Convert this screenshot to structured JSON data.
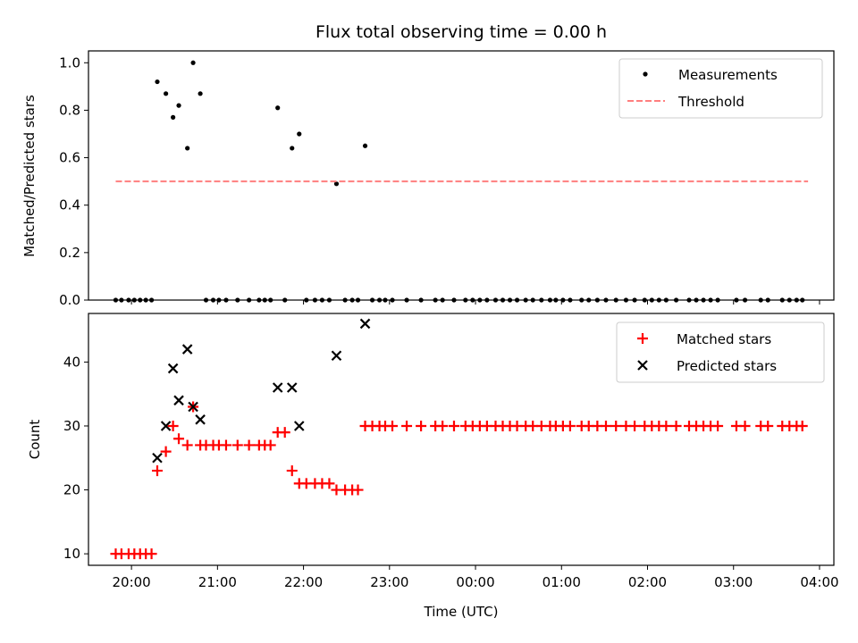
{
  "chart_data": [
    {
      "type": "scatter",
      "title": "Flux total observing time = 0.00 h",
      "ylabel": "Matched/Predicted stars",
      "xlim": [
        "19:30",
        "04:10"
      ],
      "ylim": [
        0,
        1.05
      ],
      "yticks": [
        0.0,
        0.2,
        0.4,
        0.6,
        0.8,
        1.0
      ],
      "ytick_labels": [
        "0.0",
        "0.2",
        "0.4",
        "0.6",
        "0.8",
        "1.0"
      ],
      "legend_position": "upper right",
      "series": [
        {
          "name": "Measurements",
          "kind": "scatter",
          "marker": "dot",
          "color": "#000000",
          "points": [
            [
              "19:49",
              0
            ],
            [
              "19:53",
              0
            ],
            [
              "19:58",
              0
            ],
            [
              "20:02",
              0
            ],
            [
              "20:06",
              0
            ],
            [
              "20:10",
              0
            ],
            [
              "20:14",
              0
            ],
            [
              "20:18",
              0.92
            ],
            [
              "20:24",
              0.87
            ],
            [
              "20:29",
              0.77
            ],
            [
              "20:33",
              0.82
            ],
            [
              "20:39",
              0.64
            ],
            [
              "20:43",
              1.0
            ],
            [
              "20:48",
              0.87
            ],
            [
              "20:52",
              0
            ],
            [
              "20:57",
              0
            ],
            [
              "21:01",
              0
            ],
            [
              "21:06",
              0
            ],
            [
              "21:14",
              0
            ],
            [
              "21:22",
              0
            ],
            [
              "21:29",
              0
            ],
            [
              "21:33",
              0
            ],
            [
              "21:37",
              0
            ],
            [
              "21:42",
              0.81
            ],
            [
              "21:47",
              0
            ],
            [
              "21:52",
              0.64
            ],
            [
              "21:57",
              0.7
            ],
            [
              "22:02",
              0
            ],
            [
              "22:08",
              0
            ],
            [
              "22:13",
              0
            ],
            [
              "22:18",
              0
            ],
            [
              "22:23",
              0.49
            ],
            [
              "22:29",
              0
            ],
            [
              "22:34",
              0
            ],
            [
              "22:38",
              0
            ],
            [
              "22:43",
              0.65
            ],
            [
              "22:48",
              0
            ],
            [
              "22:53",
              0
            ],
            [
              "22:57",
              0
            ],
            [
              "23:02",
              0
            ],
            [
              "23:12",
              0
            ],
            [
              "23:22",
              0
            ],
            [
              "23:32",
              0
            ],
            [
              "23:37",
              0
            ],
            [
              "23:45",
              0
            ],
            [
              "23:53",
              0
            ],
            [
              "23:58",
              0
            ],
            [
              "00:03",
              0
            ],
            [
              "00:08",
              0
            ],
            [
              "00:14",
              0
            ],
            [
              "00:19",
              0
            ],
            [
              "00:24",
              0
            ],
            [
              "00:29",
              0
            ],
            [
              "00:35",
              0
            ],
            [
              "00:40",
              0
            ],
            [
              "00:46",
              0
            ],
            [
              "00:52",
              0
            ],
            [
              "00:56",
              0
            ],
            [
              "01:01",
              0
            ],
            [
              "01:06",
              0
            ],
            [
              "01:14",
              0
            ],
            [
              "01:19",
              0
            ],
            [
              "01:25",
              0
            ],
            [
              "01:31",
              0
            ],
            [
              "01:38",
              0
            ],
            [
              "01:45",
              0
            ],
            [
              "01:51",
              0
            ],
            [
              "01:58",
              0
            ],
            [
              "02:03",
              0
            ],
            [
              "02:08",
              0
            ],
            [
              "02:13",
              0
            ],
            [
              "02:20",
              0
            ],
            [
              "02:29",
              0
            ],
            [
              "02:34",
              0
            ],
            [
              "02:39",
              0
            ],
            [
              "02:44",
              0
            ],
            [
              "02:49",
              0
            ],
            [
              "03:02",
              0
            ],
            [
              "03:08",
              0
            ],
            [
              "03:19",
              0
            ],
            [
              "03:24",
              0
            ],
            [
              "03:34",
              0
            ],
            [
              "03:39",
              0
            ],
            [
              "03:44",
              0
            ],
            [
              "03:48",
              0
            ]
          ]
        },
        {
          "name": "Threshold",
          "kind": "line",
          "style": "dashed",
          "color": "#ff7f7f",
          "points": [
            [
              "19:49",
              0.5
            ],
            [
              "03:52",
              0.5
            ]
          ]
        }
      ]
    },
    {
      "type": "scatter",
      "xlabel": "Time (UTC)",
      "ylabel": "Count",
      "xlim": [
        "19:30",
        "04:10"
      ],
      "ylim": [
        8.2,
        47.6
      ],
      "xticks": [
        "20:00",
        "21:00",
        "22:00",
        "23:00",
        "00:00",
        "01:00",
        "02:00",
        "03:00",
        "04:00"
      ],
      "yticks": [
        10,
        20,
        30,
        40
      ],
      "ytick_labels": [
        "10",
        "20",
        "30",
        "40"
      ],
      "legend_position": "upper right",
      "series": [
        {
          "name": "Matched stars",
          "kind": "scatter",
          "marker": "plus",
          "color": "#ff0000",
          "points": [
            [
              "19:49",
              10
            ],
            [
              "19:53",
              10
            ],
            [
              "19:58",
              10
            ],
            [
              "20:02",
              10
            ],
            [
              "20:06",
              10
            ],
            [
              "20:10",
              10
            ],
            [
              "20:14",
              10
            ],
            [
              "20:18",
              23
            ],
            [
              "20:24",
              26
            ],
            [
              "20:29",
              30
            ],
            [
              "20:33",
              28
            ],
            [
              "20:39",
              27
            ],
            [
              "20:43",
              33
            ],
            [
              "20:48",
              27
            ],
            [
              "20:52",
              27
            ],
            [
              "20:57",
              27
            ],
            [
              "21:01",
              27
            ],
            [
              "21:06",
              27
            ],
            [
              "21:14",
              27
            ],
            [
              "21:22",
              27
            ],
            [
              "21:29",
              27
            ],
            [
              "21:33",
              27
            ],
            [
              "21:37",
              27
            ],
            [
              "21:42",
              29
            ],
            [
              "21:47",
              29
            ],
            [
              "21:52",
              23
            ],
            [
              "21:57",
              21
            ],
            [
              "22:02",
              21
            ],
            [
              "22:08",
              21
            ],
            [
              "22:13",
              21
            ],
            [
              "22:18",
              21
            ],
            [
              "22:23",
              20
            ],
            [
              "22:29",
              20
            ],
            [
              "22:34",
              20
            ],
            [
              "22:38",
              20
            ],
            [
              "22:43",
              30
            ],
            [
              "22:48",
              30
            ],
            [
              "22:53",
              30
            ],
            [
              "22:57",
              30
            ],
            [
              "23:02",
              30
            ],
            [
              "23:12",
              30
            ],
            [
              "23:22",
              30
            ],
            [
              "23:32",
              30
            ],
            [
              "23:37",
              30
            ],
            [
              "23:45",
              30
            ],
            [
              "23:53",
              30
            ],
            [
              "23:58",
              30
            ],
            [
              "00:03",
              30
            ],
            [
              "00:08",
              30
            ],
            [
              "00:14",
              30
            ],
            [
              "00:19",
              30
            ],
            [
              "00:24",
              30
            ],
            [
              "00:29",
              30
            ],
            [
              "00:35",
              30
            ],
            [
              "00:40",
              30
            ],
            [
              "00:46",
              30
            ],
            [
              "00:52",
              30
            ],
            [
              "00:56",
              30
            ],
            [
              "01:01",
              30
            ],
            [
              "01:06",
              30
            ],
            [
              "01:14",
              30
            ],
            [
              "01:19",
              30
            ],
            [
              "01:25",
              30
            ],
            [
              "01:31",
              30
            ],
            [
              "01:38",
              30
            ],
            [
              "01:45",
              30
            ],
            [
              "01:51",
              30
            ],
            [
              "01:58",
              30
            ],
            [
              "02:03",
              30
            ],
            [
              "02:08",
              30
            ],
            [
              "02:13",
              30
            ],
            [
              "02:20",
              30
            ],
            [
              "02:29",
              30
            ],
            [
              "02:34",
              30
            ],
            [
              "02:39",
              30
            ],
            [
              "02:44",
              30
            ],
            [
              "02:49",
              30
            ],
            [
              "03:02",
              30
            ],
            [
              "03:08",
              30
            ],
            [
              "03:19",
              30
            ],
            [
              "03:24",
              30
            ],
            [
              "03:34",
              30
            ],
            [
              "03:39",
              30
            ],
            [
              "03:44",
              30
            ],
            [
              "03:48",
              30
            ]
          ]
        },
        {
          "name": "Predicted stars",
          "kind": "scatter",
          "marker": "x",
          "color": "#000000",
          "points": [
            [
              "20:18",
              25
            ],
            [
              "20:24",
              30
            ],
            [
              "20:29",
              39
            ],
            [
              "20:33",
              34
            ],
            [
              "20:39",
              42
            ],
            [
              "20:43",
              33
            ],
            [
              "20:48",
              31
            ],
            [
              "21:42",
              36
            ],
            [
              "21:52",
              36
            ],
            [
              "21:57",
              30
            ],
            [
              "22:23",
              41
            ],
            [
              "22:43",
              46
            ]
          ]
        }
      ]
    }
  ]
}
